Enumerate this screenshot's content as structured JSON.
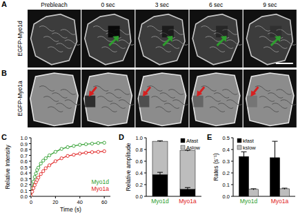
{
  "figure": {
    "panel_labels": [
      "A",
      "B",
      "C",
      "D",
      "E"
    ],
    "time_labels": [
      "Prebleach",
      "0 sec",
      "3 sec",
      "6 sec",
      "9 sec"
    ],
    "row_labels": [
      "EGFP-Myo1d",
      "EGFP-Myo1a"
    ]
  },
  "chart_data": [
    {
      "type": "line",
      "x_label": "Time (s)",
      "y_label": "Relative Intensity",
      "x": [
        0,
        1,
        2,
        3,
        4,
        5,
        6,
        8,
        10,
        12,
        15,
        20,
        25,
        30,
        35,
        40,
        45,
        50,
        55,
        60
      ],
      "series": [
        {
          "name": "Myo1d",
          "color": "#2e9e2e",
          "marker": "circle",
          "values": [
            0,
            0.14,
            0.25,
            0.33,
            0.39,
            0.45,
            0.49,
            0.56,
            0.61,
            0.65,
            0.7,
            0.76,
            0.81,
            0.84,
            0.86,
            0.88,
            0.89,
            0.9,
            0.91,
            0.915
          ]
        },
        {
          "name": "Myo1a",
          "color": "#e02020",
          "marker": "circle",
          "values": [
            0,
            0.08,
            0.14,
            0.19,
            0.24,
            0.28,
            0.32,
            0.38,
            0.43,
            0.48,
            0.53,
            0.6,
            0.65,
            0.69,
            0.71,
            0.73,
            0.745,
            0.755,
            0.76,
            0.77
          ]
        }
      ],
      "xlim": [
        0,
        65
      ],
      "xticks": [
        0,
        20,
        40,
        60
      ],
      "ylim": [
        0,
        1.0
      ],
      "yticks": [
        {
          "value": 0,
          "label": "0.0"
        },
        {
          "value": 0.1,
          "label": "0.1"
        },
        {
          "value": 0.2,
          "label": "0.2"
        },
        {
          "value": 0.3,
          "label": "0.3"
        },
        {
          "value": 0.4,
          "label": "0.4"
        },
        {
          "value": 0.5,
          "label": "0.5"
        },
        {
          "value": 0.6,
          "label": "0.6"
        },
        {
          "value": 0.7,
          "label": "0.7"
        },
        {
          "value": 0.8,
          "label": "0.8"
        },
        {
          "value": 0.9,
          "label": "0.9"
        },
        {
          "value": 1.0,
          "label": "1.0"
        }
      ],
      "legend": "lower right"
    },
    {
      "type": "bar",
      "stacked": true,
      "y_label": "Relative amplitude",
      "categories": [
        "Myo1d",
        "Myo1a"
      ],
      "series": [
        {
          "name": "Afast",
          "color": "#000000",
          "values": [
            0.37,
            0.12
          ],
          "errors": [
            0.04,
            0.03
          ]
        },
        {
          "name": "Aslow",
          "color": "#bdbdbd",
          "values": [
            0.57,
            0.66
          ],
          "errors": [
            0.01,
            0.01
          ]
        }
      ],
      "ylim": [
        0,
        1.0
      ],
      "yticks": [
        {
          "value": 0,
          "label": "0.0"
        },
        {
          "value": 0.2,
          "label": "0.2"
        },
        {
          "value": 0.4,
          "label": "0.4"
        },
        {
          "value": 0.6,
          "label": "0.6"
        },
        {
          "value": 0.8,
          "label": "0.8"
        },
        {
          "value": 1.0,
          "label": "1.0"
        }
      ],
      "legend": "upper right"
    },
    {
      "type": "bar",
      "y_label": "Rates (s⁻¹)",
      "categories": [
        "Myo1d",
        "Myo1a"
      ],
      "series": [
        {
          "name": "kfast",
          "color": "#000000",
          "values": [
            0.34,
            0.33
          ],
          "errors": [
            0.04,
            0.14
          ]
        },
        {
          "name": "kslow",
          "color": "#bdbdbd",
          "values": [
            0.06,
            0.065
          ],
          "errors": [
            0.005,
            0.005
          ]
        }
      ],
      "ylim": [
        0,
        0.5
      ],
      "yticks": [
        {
          "value": 0,
          "label": "0.0"
        },
        {
          "value": 0.1,
          "label": "0.1"
        },
        {
          "value": 0.2,
          "label": "0.2"
        },
        {
          "value": 0.3,
          "label": "0.3"
        },
        {
          "value": 0.4,
          "label": "0.4"
        },
        {
          "value": 0.5,
          "label": "0.5"
        }
      ],
      "legend": "upper left"
    }
  ]
}
